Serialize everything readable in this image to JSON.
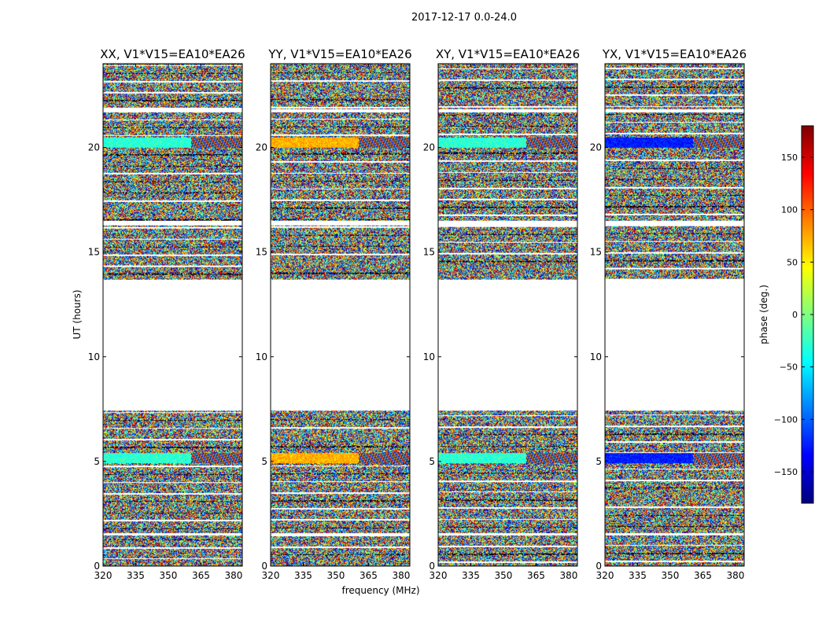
{
  "chart_data": {
    "type": "heatmap",
    "title": "2017-12-17 0.0-24.0",
    "xlabel": "frequency (MHz)",
    "ylabel": "UT (hours)",
    "xlim": [
      320,
      384
    ],
    "ylim": [
      0,
      24
    ],
    "x_ticks": [
      "320",
      "335",
      "350",
      "365",
      "380"
    ],
    "y_ticks": [
      "0",
      "5",
      "10",
      "15",
      "20"
    ],
    "panels": [
      {
        "title": "XX, V1*V15=EA10*EA26",
        "bright_tone": "green"
      },
      {
        "title": "YY, V1*V15=EA10*EA26",
        "bright_tone": "orange"
      },
      {
        "title": "XY, V1*V15=EA10*EA26",
        "bright_tone": "green"
      },
      {
        "title": "YX, V1*V15=EA10*EA26",
        "bright_tone": "blue"
      }
    ],
    "data_ranges_ut_hours": [
      [
        0,
        7.4
      ],
      [
        13.7,
        24
      ]
    ],
    "colorbar": {
      "label": "phase (deg.)",
      "range": [
        -180,
        180
      ],
      "ticks": [
        "150",
        "100",
        "50",
        "0",
        "−50",
        "−100",
        "−150"
      ],
      "tick_values": [
        150,
        100,
        50,
        0,
        -50,
        -100,
        -150
      ],
      "colormap": "jet"
    }
  }
}
